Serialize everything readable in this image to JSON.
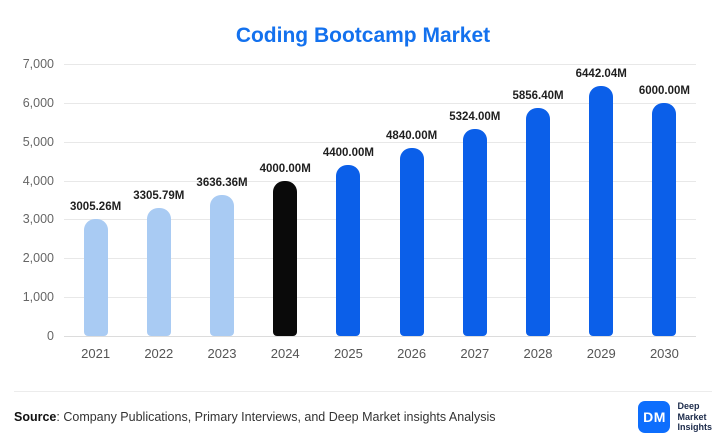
{
  "title": "Coding Bootcamp Market",
  "colors": {
    "title": "#1371EE",
    "bar_light": "#A9CBF3",
    "bar_black": "#0A0A0A",
    "bar_blue": "#0B5FE9",
    "gridline": "#E8E8E8",
    "logo_bg": "#0D6EFD"
  },
  "chart_data": {
    "type": "bar",
    "title": "Coding Bootcamp Market",
    "categories": [
      "2021",
      "2022",
      "2023",
      "2024",
      "2025",
      "2026",
      "2027",
      "2028",
      "2029",
      "2030"
    ],
    "values": [
      3005.26,
      3305.79,
      3636.36,
      4000.0,
      4400.0,
      4840.0,
      5324.0,
      5856.4,
      6442.04,
      6000.0
    ],
    "labels": [
      "3005.26M",
      "3305.79M",
      "3636.36M",
      "4000.00M",
      "4400.00M",
      "4840.00M",
      "5324.00M",
      "5856.40M",
      "6442.04M",
      "6000.00M"
    ],
    "bar_colors": [
      "#A9CBF3",
      "#A9CBF3",
      "#A9CBF3",
      "#0A0A0A",
      "#0B5FE9",
      "#0B5FE9",
      "#0B5FE9",
      "#0B5FE9",
      "#0B5FE9",
      "#0B5FE9"
    ],
    "xlabel": "",
    "ylabel": "",
    "ylim": [
      0,
      7000
    ],
    "yticks": [
      "7,000",
      "6,000",
      "5,000",
      "4,000",
      "3,000",
      "2,000",
      "1,000",
      "0"
    ],
    "grid": true,
    "legend": "none"
  },
  "footer": {
    "source_label": "Source",
    "source_text": ": Company Publications, Primary Interviews, and Deep Market insights Analysis",
    "logo_text": "DM",
    "logo_name_lines": [
      "Deep",
      "Market",
      "Insights"
    ]
  }
}
